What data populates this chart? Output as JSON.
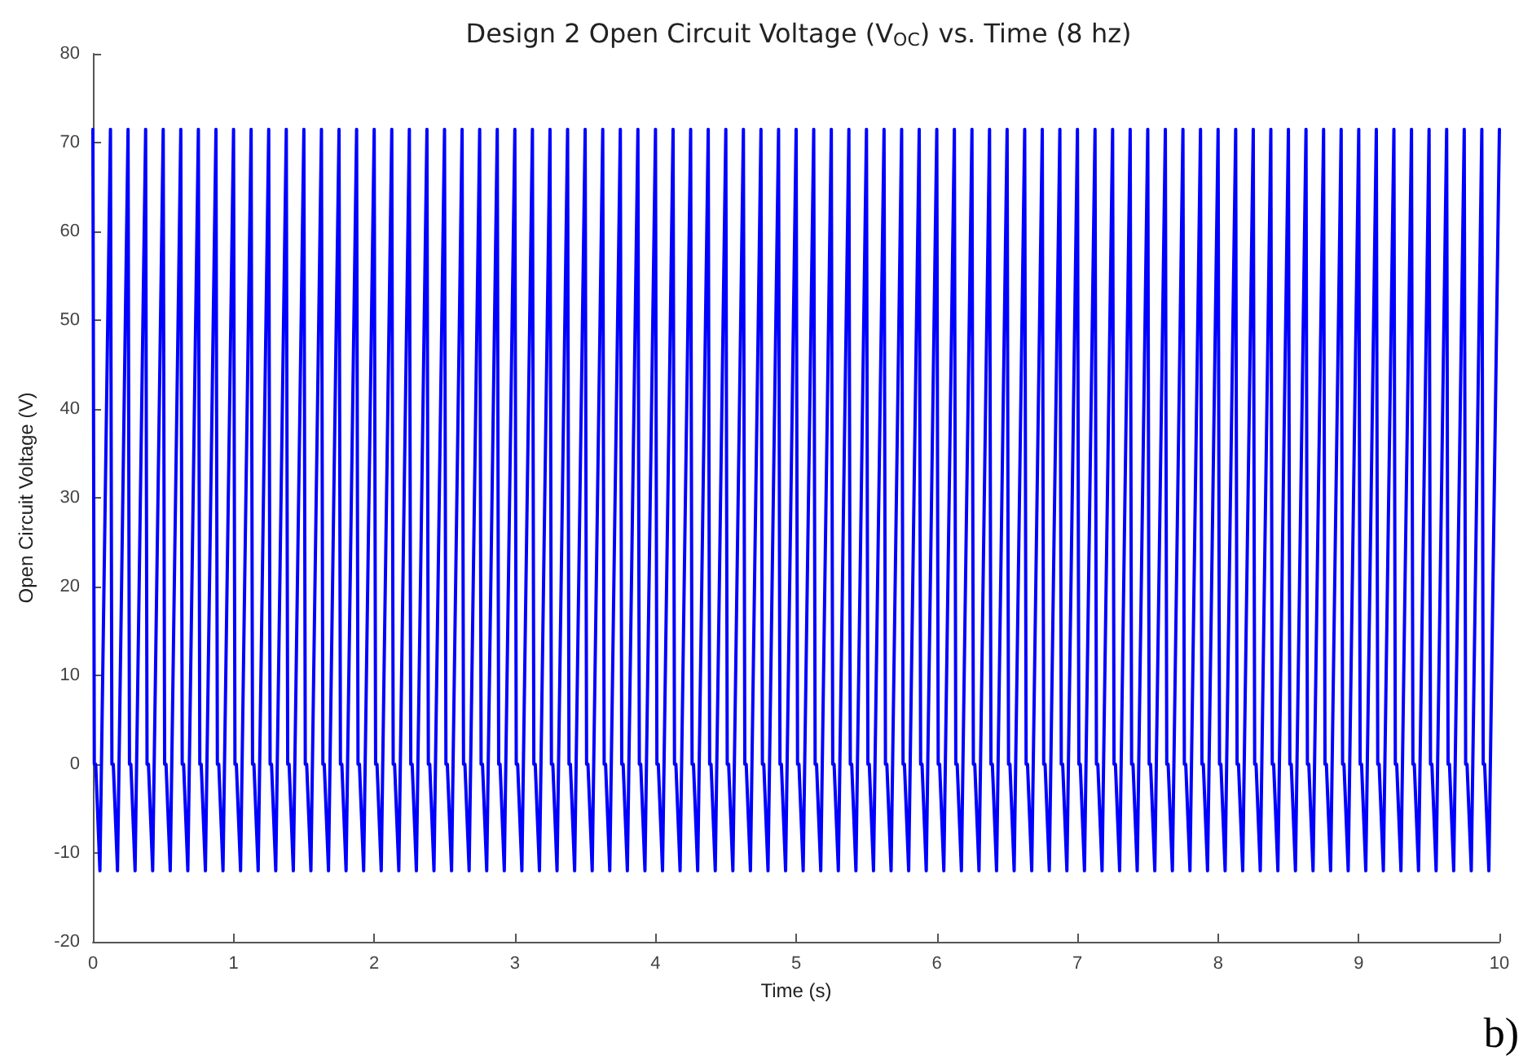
{
  "chart_data": {
    "type": "line",
    "title": "Design 2 Open Circuit Voltage (V$_{OC}$) vs. Time (8 hz)",
    "xlabel": "Time (s)",
    "ylabel": "Open Circuit Voltage (V)",
    "annotations": [
      "b)"
    ],
    "xlim": [
      0,
      10
    ],
    "xticks": [
      0,
      1,
      2,
      3,
      4,
      5,
      6,
      7,
      8,
      9,
      10
    ],
    "ylim": [
      -20,
      80
    ],
    "yticks": [
      -20,
      -10,
      0,
      10,
      20,
      30,
      40,
      50,
      60,
      70,
      80
    ],
    "grid": false,
    "marker": "none",
    "line_style": "solid",
    "series": [
      {
        "color": "#0000ff",
        "x": [
          0,
          0.01,
          0.02,
          0.05,
          0.125,
          0.135,
          0.145,
          0.175,
          0.25,
          0.26,
          0.27,
          0.3,
          0.375,
          0.385,
          0.395,
          0.425,
          0.5,
          0.51,
          0.52,
          0.55,
          0.625,
          0.635,
          0.645,
          0.675,
          0.75,
          0.76,
          0.77,
          0.8,
          0.875,
          0.885,
          0.895,
          0.925,
          1,
          1.01,
          1.02,
          1.05,
          1.125,
          1.135,
          1.145,
          1.175,
          1.25,
          1.26,
          1.27,
          1.3,
          1.375,
          1.385,
          1.395,
          1.425,
          1.5,
          1.51,
          1.52,
          1.55,
          1.625,
          1.635,
          1.645,
          1.675,
          1.75,
          1.76,
          1.77,
          1.8,
          1.875,
          1.885,
          1.895,
          1.925,
          2,
          2.01,
          2.02,
          2.05,
          2.125,
          2.135,
          2.145,
          2.175,
          2.25,
          2.26,
          2.27,
          2.3,
          2.375,
          2.385,
          2.395,
          2.425,
          2.5,
          2.51,
          2.52,
          2.55,
          2.625,
          2.635,
          2.645,
          2.675,
          2.75,
          2.76,
          2.77,
          2.8,
          2.875,
          2.885,
          2.895,
          2.925,
          3,
          3.01,
          3.02,
          3.05,
          3.125,
          3.135,
          3.145,
          3.175,
          3.25,
          3.26,
          3.27,
          3.3,
          3.375,
          3.385,
          3.395,
          3.425,
          3.5,
          3.51,
          3.52,
          3.55,
          3.625,
          3.635,
          3.645,
          3.675,
          3.75,
          3.76,
          3.77,
          3.8,
          3.875,
          3.885,
          3.895,
          3.925,
          4,
          4.01,
          4.02,
          4.05,
          4.125,
          4.135,
          4.145,
          4.175,
          4.25,
          4.26,
          4.27,
          4.3,
          4.375,
          4.385,
          4.395,
          4.425,
          4.5,
          4.51,
          4.52,
          4.55,
          4.625,
          4.635,
          4.645,
          4.675,
          4.75,
          4.76,
          4.77,
          4.8,
          4.875,
          4.885,
          4.895,
          4.925,
          5,
          5.01,
          5.02,
          5.05,
          5.125,
          5.135,
          5.145,
          5.175,
          5.25,
          5.26,
          5.27,
          5.3,
          5.375,
          5.385,
          5.395,
          5.425,
          5.5,
          5.51,
          5.52,
          5.55,
          5.625,
          5.635,
          5.645,
          5.675,
          5.75,
          5.76,
          5.77,
          5.8,
          5.875,
          5.885,
          5.895,
          5.925,
          6,
          6.01,
          6.02,
          6.05,
          6.125,
          6.135,
          6.145,
          6.175,
          6.25,
          6.26,
          6.27,
          6.3,
          6.375,
          6.385,
          6.395,
          6.425,
          6.5,
          6.51,
          6.52,
          6.55,
          6.625,
          6.635,
          6.645,
          6.675,
          6.75,
          6.76,
          6.77,
          6.8,
          6.875,
          6.885,
          6.895,
          6.925,
          7,
          7.01,
          7.02,
          7.05,
          7.125,
          7.135,
          7.145,
          7.175,
          7.25,
          7.26,
          7.27,
          7.3,
          7.375,
          7.385,
          7.395,
          7.425,
          7.5,
          7.51,
          7.52,
          7.55,
          7.625,
          7.635,
          7.645,
          7.675,
          7.75,
          7.76,
          7.77,
          7.8,
          7.875,
          7.885,
          7.895,
          7.925,
          8,
          8.01,
          8.02,
          8.05,
          8.125,
          8.135,
          8.145,
          8.175,
          8.25,
          8.26,
          8.27,
          8.3,
          8.375,
          8.385,
          8.395,
          8.425,
          8.5,
          8.51,
          8.52,
          8.55,
          8.625,
          8.635,
          8.645,
          8.675,
          8.75,
          8.76,
          8.77,
          8.8,
          8.875,
          8.885,
          8.895,
          8.925,
          9,
          9.01,
          9.02,
          9.05,
          9.125,
          9.135,
          9.145,
          9.175,
          9.25,
          9.26,
          9.27,
          9.3,
          9.375,
          9.385,
          9.395,
          9.425,
          9.5,
          9.51,
          9.52,
          9.55,
          9.625,
          9.635,
          9.645,
          9.675,
          9.75,
          9.76,
          9.77,
          9.8,
          9.875,
          9.885,
          9.895,
          9.925,
          10
        ],
        "values": [
          71.5,
          0,
          0,
          -12,
          71.5,
          0,
          0,
          -12,
          71.5,
          0,
          0,
          -12,
          71.5,
          0,
          0,
          -12,
          71.5,
          0,
          0,
          -12,
          71.5,
          0,
          0,
          -12,
          71.5,
          0,
          0,
          -12,
          71.5,
          0,
          0,
          -12,
          71.5,
          0,
          0,
          -12,
          71.5,
          0,
          0,
          -12,
          71.5,
          0,
          0,
          -12,
          71.5,
          0,
          0,
          -12,
          71.5,
          0,
          0,
          -12,
          71.5,
          0,
          0,
          -12,
          71.5,
          0,
          0,
          -12,
          71.5,
          0,
          0,
          -12,
          71.5,
          0,
          0,
          -12,
          71.5,
          0,
          0,
          -12,
          71.5,
          0,
          0,
          -12,
          71.5,
          0,
          0,
          -12,
          71.5,
          0,
          0,
          -12,
          71.5,
          0,
          0,
          -12,
          71.5,
          0,
          0,
          -12,
          71.5,
          0,
          0,
          -12,
          71.5,
          0,
          0,
          -12,
          71.5,
          0,
          0,
          -12,
          71.5,
          0,
          0,
          -12,
          71.5,
          0,
          0,
          -12,
          71.5,
          0,
          0,
          -12,
          71.5,
          0,
          0,
          -12,
          71.5,
          0,
          0,
          -12,
          71.5,
          0,
          0,
          -12,
          71.5,
          0,
          0,
          -12,
          71.5,
          0,
          0,
          -12,
          71.5,
          0,
          0,
          -12,
          71.5,
          0,
          0,
          -12,
          71.5,
          0,
          0,
          -12,
          71.5,
          0,
          0,
          -12,
          71.5,
          0,
          0,
          -12,
          71.5,
          0,
          0,
          -12,
          71.5,
          0,
          0,
          -12,
          71.5,
          0,
          0,
          -12,
          71.5,
          0,
          0,
          -12,
          71.5,
          0,
          0,
          -12,
          71.5,
          0,
          0,
          -12,
          71.5,
          0,
          0,
          -12,
          71.5,
          0,
          0,
          -12,
          71.5,
          0,
          0,
          -12,
          71.5,
          0,
          0,
          -12,
          71.5,
          0,
          0,
          -12,
          71.5,
          0,
          0,
          -12,
          71.5,
          0,
          0,
          -12,
          71.5,
          0,
          0,
          -12,
          71.5,
          0,
          0,
          -12,
          71.5,
          0,
          0,
          -12,
          71.5,
          0,
          0,
          -12,
          71.5,
          0,
          0,
          -12,
          71.5,
          0,
          0,
          -12,
          71.5,
          0,
          0,
          -12,
          71.5,
          0,
          0,
          -12,
          71.5,
          0,
          0,
          -12,
          71.5,
          0,
          0,
          -12,
          71.5,
          0,
          0,
          -12,
          71.5,
          0,
          0,
          -12,
          71.5,
          0,
          0,
          -12,
          71.5,
          0,
          0,
          -12,
          71.5,
          0,
          0,
          -12,
          71.5,
          0,
          0,
          -12,
          71.5,
          0,
          0,
          -12,
          71.5,
          0,
          0,
          -12,
          71.5,
          0,
          0,
          -12,
          71.5,
          0,
          0,
          -12,
          71.5,
          0,
          0,
          -12,
          71.5,
          0,
          0,
          -12,
          71.5,
          0,
          0,
          -12,
          71.5,
          0,
          0,
          -12,
          71.5,
          0,
          0,
          -12,
          71.5,
          0,
          0,
          -12,
          71.5,
          0,
          0,
          -12,
          71.5,
          0,
          0,
          -12,
          71.5
        ]
      }
    ]
  }
}
